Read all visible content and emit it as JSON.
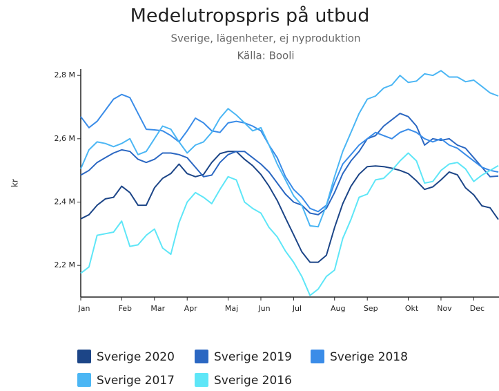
{
  "chart_data": {
    "type": "line",
    "title": "Medelutropspris på utbud",
    "subtitle": "Sverige, lägenheter, ej nyproduktion",
    "source": "Källa: Booli",
    "y_label": "kr",
    "categories": [
      "Jan",
      null,
      null,
      null,
      null,
      "Feb",
      null,
      null,
      null,
      "Mar",
      null,
      null,
      null,
      "Apr",
      null,
      null,
      null,
      null,
      "Maj",
      null,
      null,
      null,
      "Jun",
      null,
      null,
      null,
      "Jul",
      null,
      null,
      null,
      null,
      "Aug",
      null,
      null,
      null,
      "Sep",
      null,
      null,
      null,
      null,
      "Okt",
      null,
      null,
      null,
      "Nov",
      null,
      null,
      null,
      "Dec",
      null,
      null,
      null
    ],
    "ylim": [
      2100000,
      2820000
    ],
    "yticks": [
      {
        "value": 2200000,
        "label": "2,2 M"
      },
      {
        "value": 2400000,
        "label": "2,4 M"
      },
      {
        "value": 2600000,
        "label": "2,6 M"
      },
      {
        "value": 2800000,
        "label": "2,8 M"
      }
    ],
    "grid": false,
    "series": [
      {
        "name": "Sverige 2020",
        "color": "#1c4587",
        "values": [
          2347000,
          2360000,
          2390000,
          2410000,
          2415000,
          2450000,
          2430000,
          2390000,
          2390000,
          2445000,
          2475000,
          2490000,
          2520000,
          2490000,
          2480000,
          2487000,
          2525000,
          2553000,
          2560000,
          2560000,
          2535000,
          2515000,
          2487000,
          2450000,
          2405000,
          2350000,
          2297000,
          2243000,
          2210000,
          2210000,
          2232000,
          2319000,
          2395000,
          2450000,
          2488000,
          2512000,
          2514000,
          2512000,
          2507000,
          2500000,
          2490000,
          2467000,
          2440000,
          2448000,
          2470000,
          2495000,
          2486000,
          2445000,
          2423000,
          2388000,
          2382000,
          2345000
        ]
      },
      {
        "name": "Sverige 2019",
        "color": "#2b67c2",
        "values": [
          2485000,
          2500000,
          2525000,
          2540000,
          2555000,
          2565000,
          2560000,
          2535000,
          2525000,
          2535000,
          2555000,
          2555000,
          2550000,
          2540000,
          2510000,
          2480000,
          2485000,
          2525000,
          2550000,
          2560000,
          2560000,
          2540000,
          2520000,
          2495000,
          2460000,
          2425000,
          2400000,
          2390000,
          2365000,
          2360000,
          2380000,
          2430000,
          2490000,
          2530000,
          2560000,
          2600000,
          2610000,
          2640000,
          2660000,
          2680000,
          2670000,
          2640000,
          2580000,
          2600000,
          2595000,
          2600000,
          2580000,
          2570000,
          2540000,
          2510000,
          2480000,
          2482000
        ]
      },
      {
        "name": "Sverige 2018",
        "color": "#3a8ce8",
        "values": [
          2670000,
          2635000,
          2655000,
          2690000,
          2725000,
          2740000,
          2730000,
          2680000,
          2630000,
          2628000,
          2625000,
          2610000,
          2590000,
          2625000,
          2665000,
          2650000,
          2625000,
          2620000,
          2650000,
          2655000,
          2650000,
          2640000,
          2625000,
          2580000,
          2540000,
          2480000,
          2440000,
          2415000,
          2380000,
          2370000,
          2390000,
          2460000,
          2520000,
          2550000,
          2580000,
          2600000,
          2620000,
          2610000,
          2600000,
          2620000,
          2630000,
          2620000,
          2600000,
          2590000,
          2600000,
          2580000,
          2570000,
          2550000,
          2530000,
          2510000,
          2500000,
          2495000
        ]
      },
      {
        "name": "Sverige 2017",
        "color": "#4bb6f4",
        "values": [
          2505000,
          2565000,
          2590000,
          2585000,
          2575000,
          2585000,
          2600000,
          2550000,
          2560000,
          2600000,
          2640000,
          2630000,
          2590000,
          2555000,
          2580000,
          2590000,
          2620000,
          2665000,
          2695000,
          2675000,
          2650000,
          2625000,
          2635000,
          2580000,
          2520000,
          2470000,
          2420000,
          2390000,
          2325000,
          2322000,
          2390000,
          2480000,
          2560000,
          2620000,
          2680000,
          2725000,
          2735000,
          2760000,
          2770000,
          2800000,
          2778000,
          2782000,
          2805000,
          2800000,
          2815000,
          2795000,
          2795000,
          2780000,
          2785000,
          2765000,
          2745000,
          2735000
        ]
      },
      {
        "name": "Sverige 2016",
        "color": "#5ee6f7",
        "values": [
          2175000,
          2195000,
          2295000,
          2300000,
          2305000,
          2340000,
          2260000,
          2265000,
          2295000,
          2315000,
          2255000,
          2235000,
          2335000,
          2400000,
          2430000,
          2415000,
          2395000,
          2440000,
          2480000,
          2470000,
          2400000,
          2380000,
          2365000,
          2320000,
          2290000,
          2245000,
          2210000,
          2165000,
          2105000,
          2125000,
          2165000,
          2185000,
          2285000,
          2345000,
          2415000,
          2425000,
          2470000,
          2475000,
          2500000,
          2530000,
          2555000,
          2530000,
          2460000,
          2465000,
          2500000,
          2520000,
          2525000,
          2505000,
          2465000,
          2485000,
          2500000,
          2515000
        ]
      }
    ]
  }
}
